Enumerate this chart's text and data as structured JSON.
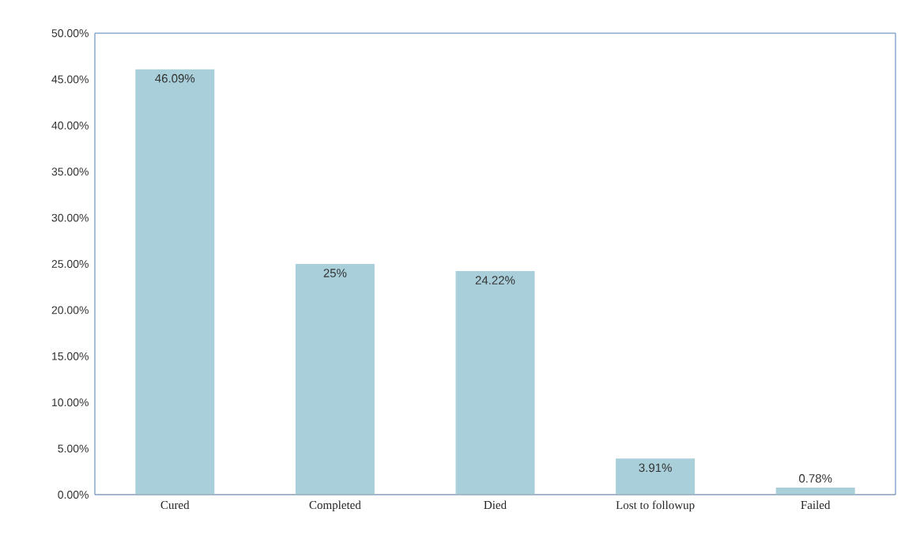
{
  "chart_data": {
    "type": "bar",
    "categories": [
      "Cured",
      "Completed",
      "Died",
      "Lost to followup",
      "Failed"
    ],
    "values": [
      46.09,
      25,
      24.22,
      3.91,
      0.78
    ],
    "value_labels": [
      "46.09%",
      "25%",
      "24.22%",
      "3.91%",
      "0.78%"
    ],
    "color": "#a9cfdb",
    "ylim": [
      0,
      50
    ],
    "yticks": [
      {
        "value": 0,
        "label": "0.00%"
      },
      {
        "value": 5,
        "label": "5.00%"
      },
      {
        "value": 10,
        "label": "10.00%"
      },
      {
        "value": 15,
        "label": "15.00%"
      },
      {
        "value": 20,
        "label": "20.00%"
      },
      {
        "value": 25,
        "label": "25.00%"
      },
      {
        "value": 30,
        "label": "30.00%"
      },
      {
        "value": 35,
        "label": "35.00%"
      },
      {
        "value": 40,
        "label": "40.00%"
      },
      {
        "value": 45,
        "label": "45.00%"
      },
      {
        "value": 50,
        "label": "50.00%"
      }
    ],
    "grid": false
  }
}
